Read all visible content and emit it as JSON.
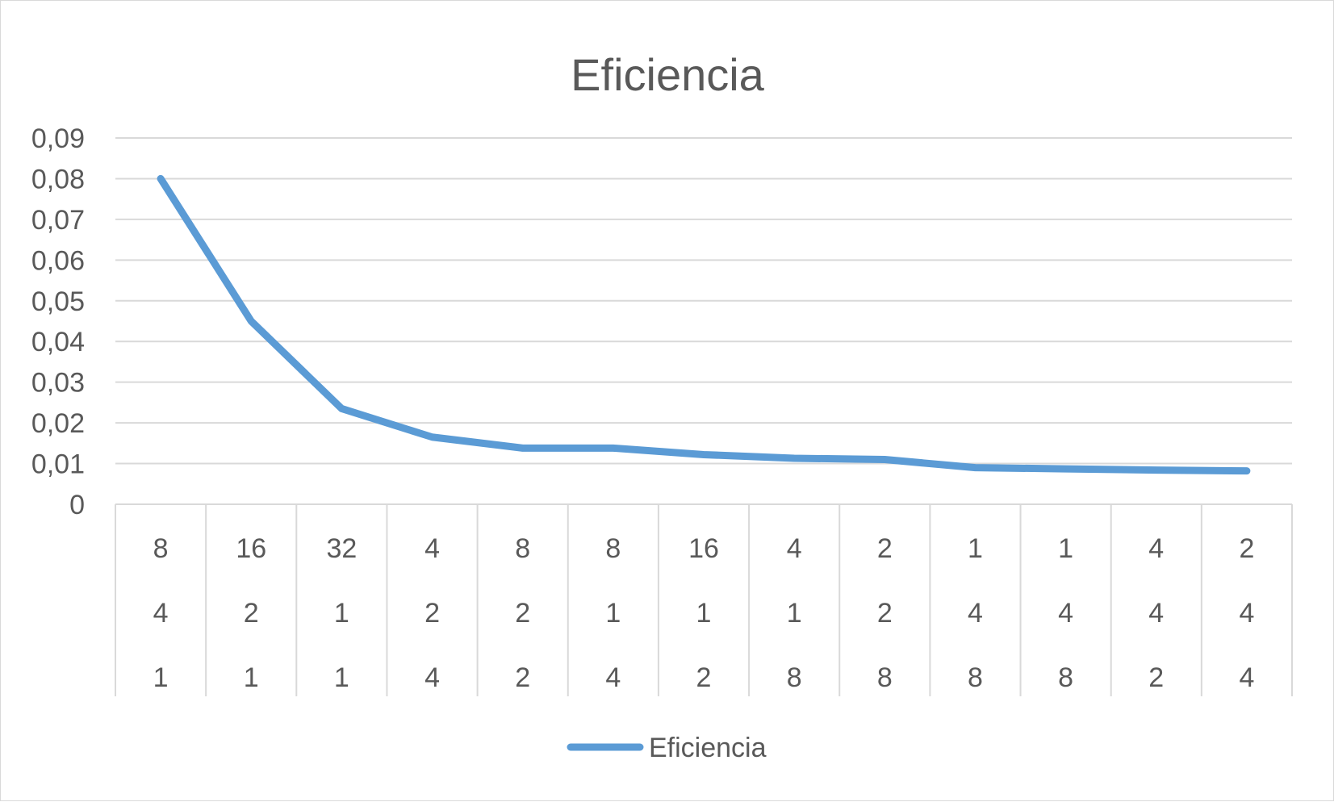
{
  "chart_data": {
    "type": "line",
    "title": "Eficiencia",
    "xlabel": "",
    "ylabel": "",
    "ylim": [
      0,
      0.09
    ],
    "yticks": [
      "0",
      "0,01",
      "0,02",
      "0,03",
      "0,04",
      "0,05",
      "0,06",
      "0,07",
      "0,08",
      "0,09"
    ],
    "ytick_values": [
      0,
      0.01,
      0.02,
      0.03,
      0.04,
      0.05,
      0.06,
      0.07,
      0.08,
      0.09
    ],
    "grid": true,
    "legend_position": "bottom",
    "categories": [
      [
        "8",
        "4",
        "1"
      ],
      [
        "16",
        "2",
        "1"
      ],
      [
        "32",
        "1",
        "1"
      ],
      [
        "4",
        "2",
        "4"
      ],
      [
        "8",
        "2",
        "2"
      ],
      [
        "8",
        "1",
        "4"
      ],
      [
        "16",
        "1",
        "2"
      ],
      [
        "4",
        "1",
        "8"
      ],
      [
        "2",
        "2",
        "8"
      ],
      [
        "1",
        "4",
        "8"
      ],
      [
        "1",
        "4",
        "8"
      ],
      [
        "4",
        "4",
        "2"
      ],
      [
        "2",
        "4",
        "4"
      ]
    ],
    "series": [
      {
        "name": "Eficiencia",
        "color": "#5b9bd5",
        "values": [
          0.08,
          0.045,
          0.0235,
          0.0165,
          0.0138,
          0.0138,
          0.0122,
          0.0113,
          0.011,
          0.009,
          0.0087,
          0.0084,
          0.0082
        ]
      }
    ]
  }
}
